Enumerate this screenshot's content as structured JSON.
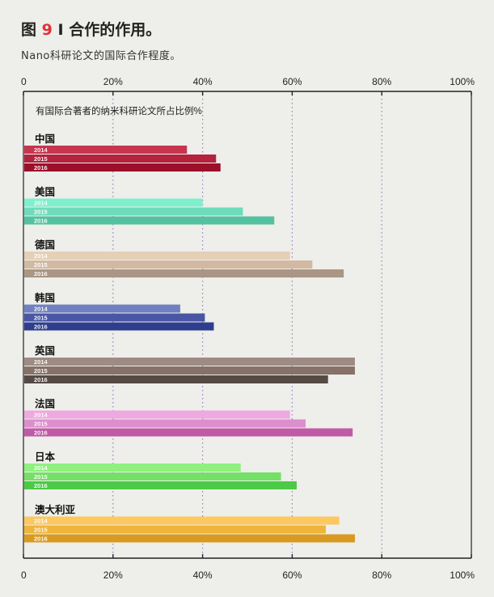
{
  "header": {
    "prefix": "图",
    "number": "9",
    "separator": "I",
    "title": "合作的作用。",
    "subtitle": "Nano科研论文的国际合作程度。"
  },
  "colors": {
    "background": "#eeeeea",
    "title_number": "#e0313a",
    "axis_line": "#222222",
    "grid_line": "#9b7fb8"
  },
  "chart_data": {
    "type": "bar",
    "orientation": "horizontal",
    "title": "有国际合著者的纳米科研论文所占比例%",
    "xlim": [
      0,
      100
    ],
    "x_ticks": [
      "0",
      "20%",
      "40%",
      "60%",
      "80%",
      "100%"
    ],
    "x_tick_values": [
      0,
      20,
      40,
      60,
      80,
      100
    ],
    "grid": true,
    "series_labels": [
      "2014",
      "2015",
      "2016"
    ],
    "groups": [
      {
        "name": "中国",
        "values": [
          36.5,
          43,
          44
        ],
        "colors": [
          "#c7354e",
          "#b4223c",
          "#9c0f2a"
        ]
      },
      {
        "name": "美国",
        "values": [
          40,
          49,
          56
        ],
        "colors": [
          "#7ef0cd",
          "#6edcbb",
          "#52c2a0"
        ]
      },
      {
        "name": "德国",
        "values": [
          59.5,
          64.5,
          71.5
        ],
        "colors": [
          "#e4cfb7",
          "#d3b9a1",
          "#a99684"
        ]
      },
      {
        "name": "韩国",
        "values": [
          35,
          40.5,
          42.5
        ],
        "colors": [
          "#7080c0",
          "#4856a4",
          "#2e3e8e"
        ]
      },
      {
        "name": "英国",
        "values": [
          74,
          74,
          68
        ],
        "colors": [
          "#9e8c84",
          "#867269",
          "#564a45"
        ]
      },
      {
        "name": "法国",
        "values": [
          59.5,
          63,
          73.5
        ],
        "colors": [
          "#f0a8e0",
          "#dc8ecd",
          "#c05aa6"
        ]
      },
      {
        "name": "日本",
        "values": [
          48.5,
          57.5,
          61
        ],
        "colors": [
          "#8ff07f",
          "#74e066",
          "#4cc947"
        ]
      },
      {
        "name": "澳大利亚",
        "values": [
          70.5,
          67.5,
          74
        ],
        "colors": [
          "#fcc85f",
          "#f0b43a",
          "#d99a22"
        ]
      }
    ]
  }
}
